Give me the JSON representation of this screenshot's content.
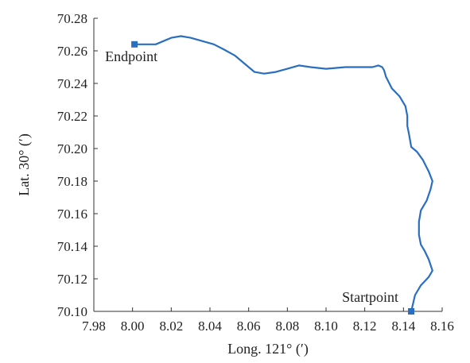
{
  "chart_data": {
    "type": "line",
    "title": "",
    "xlabel": "Long. 121° (′)",
    "ylabel": "Lat. 30° (′)",
    "xlim": [
      7.98,
      8.16
    ],
    "ylim": [
      70.1,
      70.28
    ],
    "xticks": [
      "7.98",
      "8.00",
      "8.02",
      "8.04",
      "8.06",
      "8.08",
      "8.10",
      "8.12",
      "8.14",
      "8.16"
    ],
    "yticks": [
      "70.10",
      "70.12",
      "70.14",
      "70.16",
      "70.18",
      "70.20",
      "70.22",
      "70.24",
      "70.26",
      "70.28"
    ],
    "grid": false,
    "colors": {
      "line": "#2a6ebf",
      "axis": "#333333"
    },
    "series": [
      {
        "x": [
          8.144,
          8.146,
          8.149,
          8.153,
          8.155,
          8.153,
          8.151,
          8.149,
          8.148,
          8.148,
          8.149,
          8.152,
          8.154,
          8.155,
          8.153,
          8.15,
          8.147,
          8.144,
          8.143,
          8.142,
          8.142,
          8.141,
          8.138,
          8.134,
          8.131,
          8.13,
          8.129,
          8.127,
          8.124,
          8.118,
          8.11,
          8.1,
          8.092,
          8.086,
          8.08,
          8.074,
          8.068,
          8.063,
          8.058,
          8.053,
          8.047,
          8.042,
          8.036,
          8.03,
          8.025,
          8.02,
          8.016,
          8.012,
          8.008,
          8.005,
          8.001
        ],
        "y": [
          70.1,
          70.11,
          70.116,
          70.121,
          70.125,
          70.132,
          70.137,
          70.141,
          70.147,
          70.155,
          70.162,
          70.168,
          70.175,
          70.18,
          70.186,
          70.193,
          70.198,
          70.201,
          70.208,
          70.214,
          70.22,
          70.226,
          70.232,
          70.237,
          70.244,
          70.248,
          70.25,
          70.251,
          70.25,
          70.25,
          70.25,
          70.249,
          70.25,
          70.251,
          70.249,
          70.247,
          70.246,
          70.247,
          70.252,
          70.257,
          70.261,
          70.264,
          70.266,
          70.268,
          70.269,
          70.268,
          70.266,
          70.264,
          70.264,
          70.264,
          70.264
        ]
      }
    ],
    "annotations": [
      {
        "label": "Endpoint",
        "x": 8.001,
        "y": 70.264,
        "marker": "square"
      },
      {
        "label": "Startpoint",
        "x": 8.144,
        "y": 70.1,
        "marker": "square"
      }
    ]
  }
}
